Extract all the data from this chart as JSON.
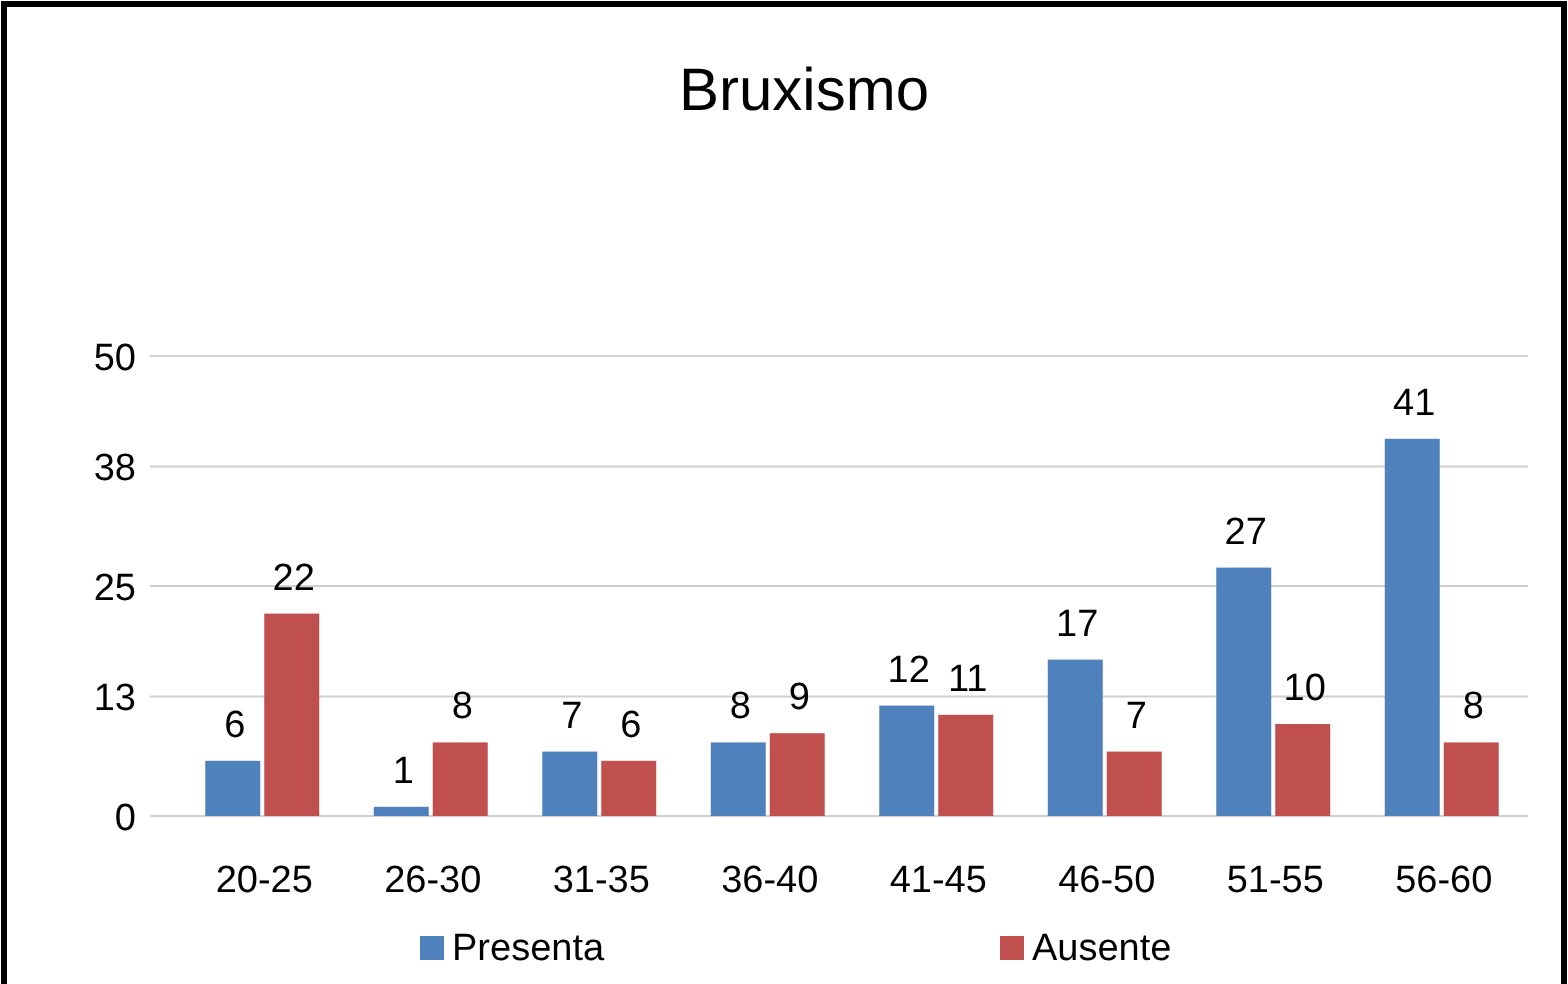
{
  "chart_data": {
    "type": "bar",
    "title": "Bruxismo",
    "categories": [
      "20-25",
      "26-30",
      "31-35",
      "36-40",
      "41-45",
      "46-50",
      "51-55",
      "56-60"
    ],
    "series": [
      {
        "name": "Presenta",
        "color": "#4f81bd",
        "values": [
          6,
          1,
          7,
          8,
          12,
          17,
          27,
          41
        ]
      },
      {
        "name": "Ausente",
        "color": "#c0504d",
        "values": [
          22,
          8,
          6,
          9,
          11,
          7,
          10,
          8
        ]
      }
    ],
    "ylim": [
      0,
      50
    ],
    "yticks": [
      0,
      13,
      25,
      38,
      50
    ],
    "grid": "y",
    "legend": "bottom",
    "data_labels": true
  }
}
